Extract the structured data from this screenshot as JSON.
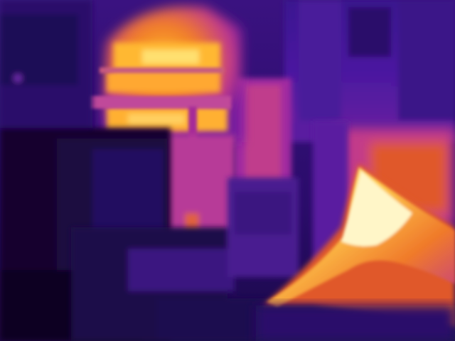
{
  "image": {
    "palette": {
      "cold": "#0a0320",
      "cool": "#2a0c6a",
      "mid": "#6a1aa8",
      "warm": "#c23a8a",
      "hot": "#f07a2a",
      "hotter": "#ffc03a",
      "hottest": "#fff6c8"
    }
  }
}
